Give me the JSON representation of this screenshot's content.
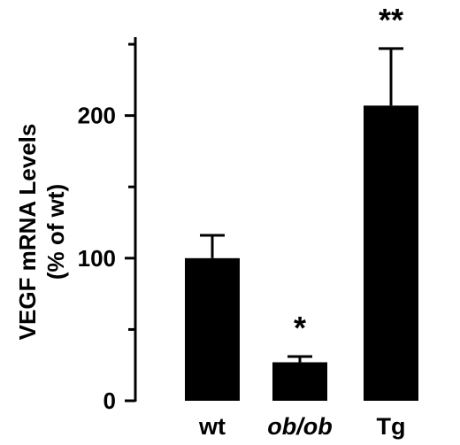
{
  "chart_data": {
    "type": "bar",
    "title": "",
    "xlabel": "",
    "ylabel_lines": [
      "VEGF mRNA Levels",
      "(% of wt)"
    ],
    "categories": [
      "wt",
      "ob/ob",
      "Tg"
    ],
    "category_italic": [
      false,
      true,
      false
    ],
    "values": [
      100,
      27,
      207
    ],
    "errors": [
      16,
      4,
      40
    ],
    "significance": [
      "",
      "*",
      "**"
    ],
    "yticks": [
      0,
      100,
      200
    ],
    "ylim": [
      0,
      255
    ],
    "grid": false,
    "legend": "none",
    "bar_color": "#000000"
  }
}
